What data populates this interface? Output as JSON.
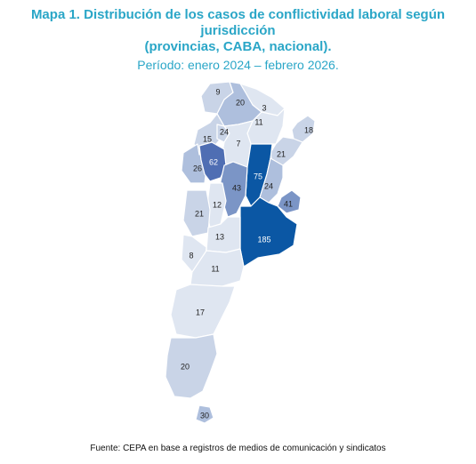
{
  "title": {
    "line1": "Mapa 1. Distribución de los casos de conflictividad laboral según jurisdicción",
    "line2": "(provincias, CABA, nacional).",
    "period": "Período: enero 2024 – febrero 2026."
  },
  "source": "Fuente: CEPA en base a registros de medios de comunicación y sindicatos",
  "colors": {
    "c1": "#dfe6f1",
    "c2": "#c9d4e7",
    "c3": "#aebfdd",
    "c4": "#7b95c6",
    "c5": "#4f6eb3",
    "c6": "#0b57a4"
  },
  "regions": [
    {
      "name": "jujuy",
      "value": "9"
    },
    {
      "name": "salta",
      "value": "20"
    },
    {
      "name": "formosa",
      "value": "3"
    },
    {
      "name": "chaco",
      "value": "11"
    },
    {
      "name": "misiones",
      "value": "18"
    },
    {
      "name": "catamarca",
      "value": "15"
    },
    {
      "name": "tucuman",
      "value": "24"
    },
    {
      "name": "santiago-del-estero",
      "value": "7"
    },
    {
      "name": "corrientes",
      "value": "21"
    },
    {
      "name": "la-rioja",
      "value": "26"
    },
    {
      "name": "cordoba",
      "value": "62"
    },
    {
      "name": "santa-fe",
      "value": "75"
    },
    {
      "name": "entre-rios",
      "value": "24"
    },
    {
      "name": "san-juan",
      "value": "43"
    },
    {
      "name": "caba",
      "value": "41"
    },
    {
      "name": "san-luis",
      "value": "12"
    },
    {
      "name": "mendoza",
      "value": "21"
    },
    {
      "name": "buenos-aires",
      "value": "185"
    },
    {
      "name": "la-pampa",
      "value": "13"
    },
    {
      "name": "neuquen",
      "value": "8"
    },
    {
      "name": "rio-negro",
      "value": "11"
    },
    {
      "name": "chubut",
      "value": "17"
    },
    {
      "name": "santa-cruz",
      "value": "20"
    },
    {
      "name": "tierra-del-fuego",
      "value": "30"
    }
  ]
}
